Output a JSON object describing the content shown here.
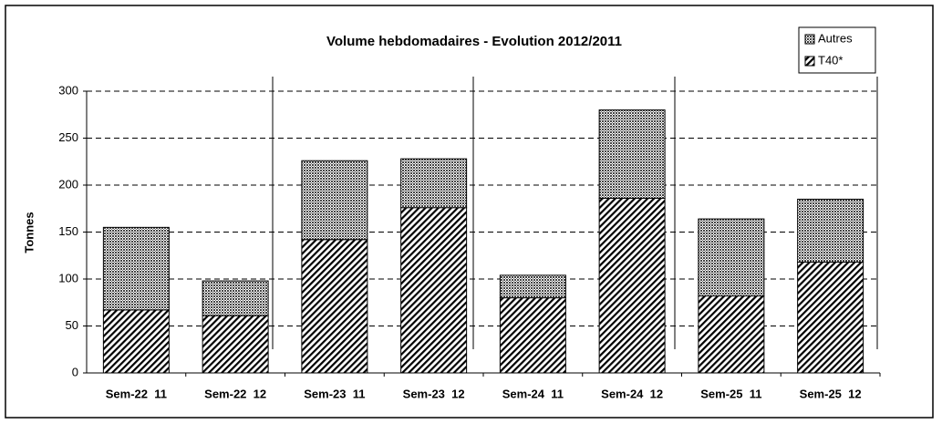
{
  "chart_data": {
    "type": "stacked-bar",
    "title": "Volume hebdomadaires  - Evolution 2012/2011",
    "y_label": "Tonnes",
    "categories": [
      "Sem-22  11",
      "Sem-22  12",
      "Sem-23  11",
      "Sem-23  12",
      "Sem-24  11",
      "Sem-24  12",
      "Sem-25  11",
      "Sem-25  12"
    ],
    "series": [
      {
        "name": "T40*",
        "pattern": "diagonal",
        "color": "#000000",
        "values": [
          67,
          61,
          142,
          176,
          80,
          186,
          82,
          118
        ]
      },
      {
        "name": "Autres",
        "pattern": "crosshatch",
        "color": "#000000",
        "values": [
          88,
          37,
          84,
          52,
          24,
          94,
          82,
          67
        ]
      }
    ],
    "ylim": [
      0,
      300
    ],
    "yticks": [
      0,
      50,
      100,
      150,
      200,
      250,
      300
    ],
    "grid": true
  }
}
